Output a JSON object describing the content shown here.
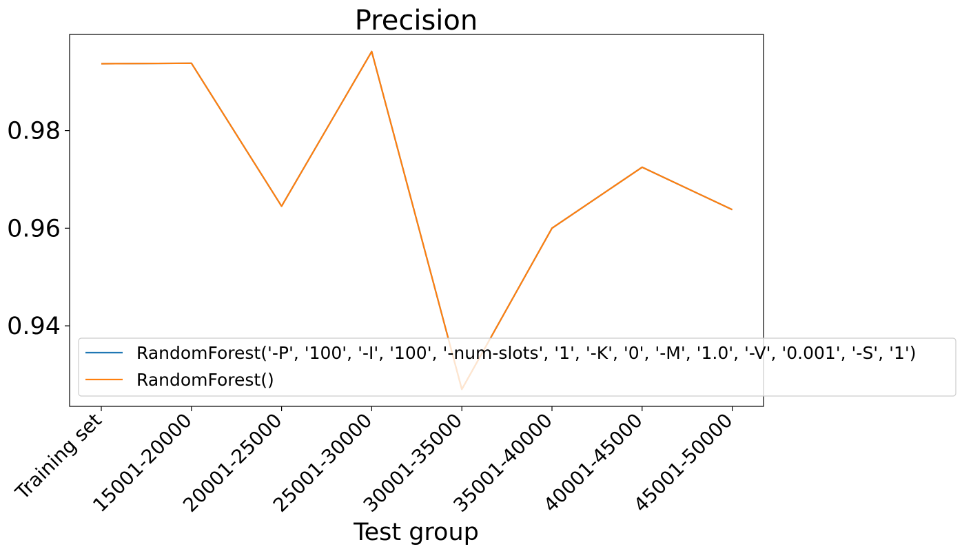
{
  "chart_data": {
    "type": "line",
    "title": "Precision",
    "xlabel": "Test group",
    "ylabel": "",
    "categories": [
      "Training set",
      "15001-20000",
      "20001-25000",
      "25001-30000",
      "30001-35000",
      "35001-40000",
      "40001-45000",
      "45001-50000"
    ],
    "yticks": [
      0.94,
      0.96,
      0.98
    ],
    "ytick_labels": [
      "0.94",
      "0.96",
      "0.98"
    ],
    "ylim": [
      0.9235,
      0.9997
    ],
    "grid": false,
    "legend_position": "lower-right",
    "series": [
      {
        "name": "RandomForest('-P', '100', '-I', '100', '-num-slots', '1', '-K', '0', '-M', '1.0', '-V', '0.001', '-S', '1')",
        "color": "#1f77b4",
        "values": [
          0.9937,
          0.9938,
          0.9645,
          0.9962,
          0.927,
          0.96,
          0.9725,
          0.9638
        ]
      },
      {
        "name": "RandomForest()",
        "color": "#ff7f0e",
        "values": [
          0.9937,
          0.9938,
          0.9645,
          0.9962,
          0.927,
          0.96,
          0.9725,
          0.9638
        ]
      }
    ]
  }
}
